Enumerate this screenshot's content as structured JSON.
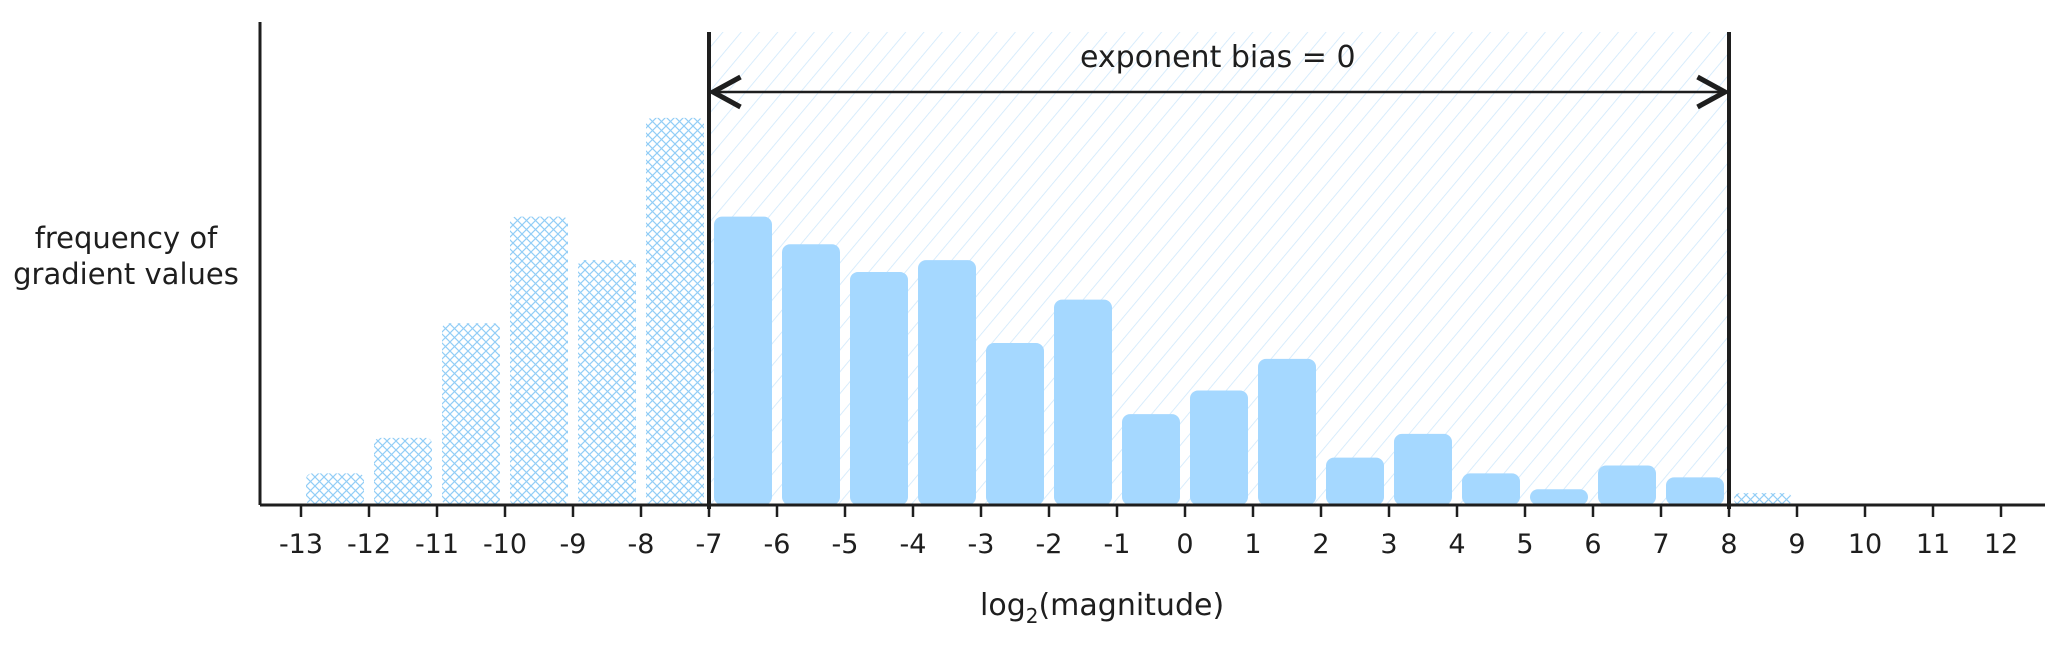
{
  "chart_data": {
    "type": "bar",
    "xlabel_prefix": "log",
    "xlabel_sub": "2",
    "xlabel_suffix": "(magnitude)",
    "ylabel_lines": [
      "frequency of",
      "gradient values"
    ],
    "x_ticks": [
      -13,
      -12,
      -11,
      -10,
      -9,
      -8,
      -7,
      -6,
      -5,
      -4,
      -3,
      -2,
      -1,
      0,
      1,
      2,
      3,
      4,
      5,
      6,
      7,
      8,
      9,
      10,
      11,
      12
    ],
    "bars": [
      {
        "x": -13,
        "value": 8,
        "in_range": false
      },
      {
        "x": -12,
        "value": 17,
        "in_range": false
      },
      {
        "x": -11,
        "value": 46,
        "in_range": false
      },
      {
        "x": -10,
        "value": 73,
        "in_range": false
      },
      {
        "x": -9,
        "value": 62,
        "in_range": false
      },
      {
        "x": -8,
        "value": 98,
        "in_range": false
      },
      {
        "x": -7,
        "value": 73,
        "in_range": true
      },
      {
        "x": -6,
        "value": 66,
        "in_range": true
      },
      {
        "x": -5,
        "value": 59,
        "in_range": true
      },
      {
        "x": -4,
        "value": 62,
        "in_range": true
      },
      {
        "x": -3,
        "value": 41,
        "in_range": true
      },
      {
        "x": -2,
        "value": 52,
        "in_range": true
      },
      {
        "x": -1,
        "value": 23,
        "in_range": true
      },
      {
        "x": 0,
        "value": 29,
        "in_range": true
      },
      {
        "x": 1,
        "value": 37,
        "in_range": true
      },
      {
        "x": 2,
        "value": 12,
        "in_range": true
      },
      {
        "x": 3,
        "value": 18,
        "in_range": true
      },
      {
        "x": 4,
        "value": 8,
        "in_range": true
      },
      {
        "x": 5,
        "value": 4,
        "in_range": true
      },
      {
        "x": 6,
        "value": 10,
        "in_range": true
      },
      {
        "x": 7,
        "value": 7,
        "in_range": true
      },
      {
        "x": 8,
        "value": 3,
        "in_range": false
      }
    ],
    "representable_range": {
      "from": -7,
      "to": 8
    },
    "annotation": "exponent bias = 0",
    "xlim": [
      -13.5,
      13
    ],
    "ylim": [
      0,
      100
    ],
    "grid": false,
    "colors": {
      "bar_solid": "#a5d8ff",
      "bar_hatched": "#a5d8ff",
      "range_hatch": "#d0ebff",
      "axis": "#1e1e1e"
    }
  }
}
